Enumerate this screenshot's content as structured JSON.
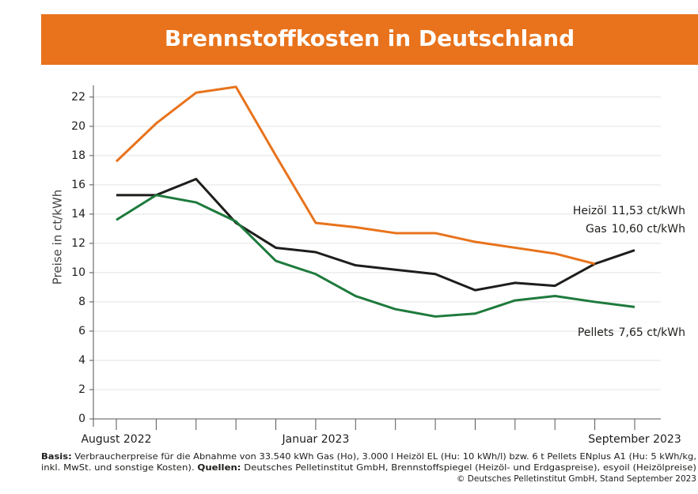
{
  "chart_data": {
    "type": "line",
    "title": "Brennstoffkosten in Deutschland",
    "y_label": "Preise in ct/kWh",
    "categories": [
      "August 2022",
      null,
      null,
      null,
      null,
      "Januar 2023",
      null,
      null,
      null,
      null,
      null,
      null,
      null,
      "September 2023"
    ],
    "ylim": [
      0,
      22.8
    ],
    "yticks": [
      0,
      2,
      4,
      6,
      8,
      10,
      12,
      14,
      16,
      18,
      20,
      22
    ],
    "grid": true,
    "series": [
      {
        "name": "Heizöl",
        "color": "#1d1d1b",
        "values": [
          15.3,
          15.3,
          16.4,
          13.4,
          11.7,
          11.4,
          10.5,
          10.2,
          9.9,
          8.8,
          9.3,
          9.1,
          10.6,
          11.53
        ],
        "value_labels": [
          null,
          null,
          null,
          null,
          null,
          null,
          null,
          null,
          null,
          null,
          null,
          null,
          null,
          "11,53 ct/kWh"
        ]
      },
      {
        "name": "Gas",
        "color": "#e8731c",
        "values": [
          17.6,
          20.2,
          22.3,
          22.7,
          18.0,
          13.4,
          13.1,
          12.7,
          12.7,
          12.1,
          11.7,
          11.3,
          10.6,
          null
        ],
        "value_labels": [
          null,
          null,
          null,
          null,
          null,
          null,
          null,
          null,
          null,
          null,
          null,
          null,
          "10,60 ct/kWh",
          null
        ]
      },
      {
        "name": "Pellets",
        "color": "#1e7a3c",
        "values": [
          13.6,
          15.3,
          14.8,
          13.5,
          10.8,
          9.9,
          8.4,
          7.5,
          7.0,
          7.2,
          8.1,
          8.4,
          8.0,
          7.65
        ],
        "value_labels": [
          null,
          null,
          null,
          null,
          null,
          null,
          null,
          null,
          null,
          null,
          null,
          null,
          null,
          "7,65 ct/kWh"
        ]
      }
    ],
    "footnote": {
      "basis_label": "Basis:",
      "basis_text": "Verbraucherpreise für die Abnahme von 33.540 kWh Gas (Ho), 3.000 l Heizöl EL (Hu: 10 kWh/l) bzw. 6 t Pellets ENplus A1 (Hu: 5 kWh/kg,",
      "basis_text_2": "inkl. MwSt. und sonstige Kosten).",
      "sources_label": "Quellen:",
      "sources_text": "Deutsches Pelletinstitut GmbH, Brennstoffspiegel (Heizöl- und Erdgaspreise), esyoil (Heizölpreise)",
      "copyright": "© Deutsches Pelletinstitut GmbH, Stand September 2023"
    }
  }
}
